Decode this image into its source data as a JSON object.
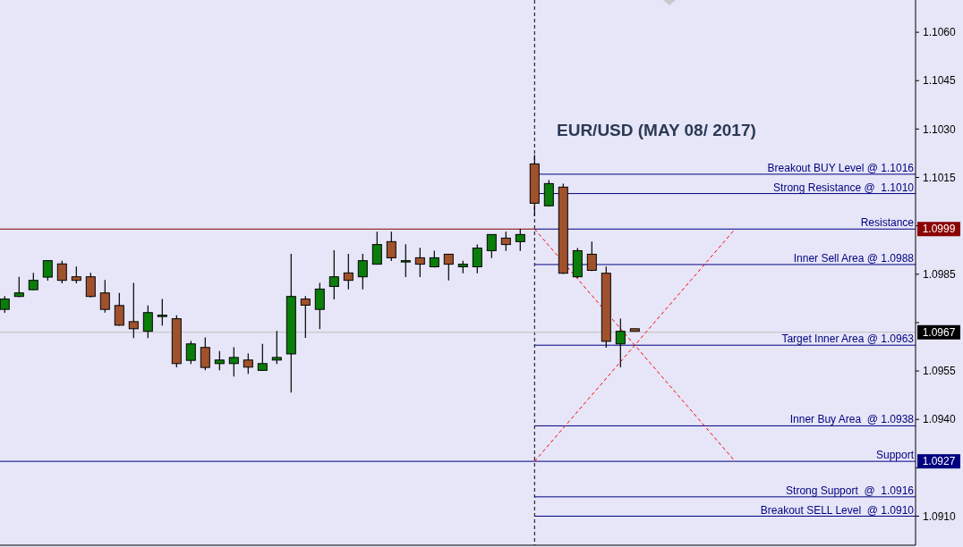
{
  "chart_data": {
    "type": "candlestick",
    "title": "EUR/USD (MAY 08/ 2017)",
    "categories": [
      null,
      null,
      null,
      null,
      null,
      null,
      null,
      null,
      null,
      null,
      null,
      null,
      null,
      null,
      null,
      null,
      null,
      null,
      null,
      null,
      null,
      null,
      null,
      null,
      null,
      null,
      null,
      null,
      null,
      null,
      null,
      null,
      null,
      null,
      null,
      null,
      null,
      null,
      null,
      null,
      null,
      null,
      null,
      null,
      null,
      null,
      null,
      null,
      null,
      null,
      null,
      null,
      null,
      null,
      null,
      null,
      null,
      null,
      null,
      null,
      null,
      null,
      null,
      null
    ],
    "ohlc": [
      [
        1.09741,
        1.09782,
        1.0973,
        1.09773
      ],
      [
        1.09781,
        1.09842,
        1.09779,
        1.09792
      ],
      [
        1.09802,
        1.09854,
        1.098,
        1.09831
      ],
      [
        1.09841,
        1.09893,
        1.0983,
        1.09892
      ],
      [
        1.09882,
        1.09892,
        1.09822,
        1.09831
      ],
      [
        1.09842,
        1.09874,
        1.09822,
        1.09831
      ],
      [
        1.09842,
        1.09854,
        1.09778,
        1.09781
      ],
      [
        1.09792,
        1.09832,
        1.09731,
        1.09741
      ],
      [
        1.09753,
        1.09792,
        1.0969,
        1.09692
      ],
      [
        1.09703,
        1.09823,
        1.09652,
        1.09681
      ],
      [
        1.09673,
        1.09753,
        1.09652,
        1.09731
      ],
      [
        1.09723,
        1.09773,
        1.09691,
        1.09723
      ],
      [
        1.09712,
        1.09723,
        1.09561,
        1.09573
      ],
      [
        1.09583,
        1.09643,
        1.09572,
        1.09634
      ],
      [
        1.09623,
        1.09654,
        1.09552,
        1.09561
      ],
      [
        1.09573,
        1.09612,
        1.09552,
        1.09584
      ],
      [
        1.09573,
        1.09624,
        1.09533,
        1.09592
      ],
      [
        1.09584,
        1.09604,
        1.09541,
        1.09562
      ],
      [
        1.09552,
        1.09634,
        1.0955,
        1.09573
      ],
      [
        1.09584,
        1.09674,
        1.09572,
        1.09592
      ],
      [
        1.09603,
        1.09913,
        1.09483,
        1.09781
      ],
      [
        1.09773,
        1.09782,
        1.09653,
        1.09754
      ],
      [
        1.09741,
        1.09823,
        1.0968,
        1.09804
      ],
      [
        1.09812,
        1.09924,
        1.09772,
        1.09842
      ],
      [
        1.09854,
        1.09913,
        1.09803,
        1.09831
      ],
      [
        1.09842,
        1.09913,
        1.09803,
        1.09892
      ],
      [
        1.09881,
        1.09982,
        1.0988,
        1.09942
      ],
      [
        1.09951,
        1.09982,
        1.09891,
        1.09901
      ],
      [
        1.09892,
        1.09943,
        1.09841,
        1.09892
      ],
      [
        1.09901,
        1.09932,
        1.09841,
        1.09881
      ],
      [
        1.09873,
        1.09923,
        1.09871,
        1.09901
      ],
      [
        1.09912,
        1.09913,
        1.09831,
        1.09881
      ],
      [
        1.09873,
        1.09892,
        1.09853,
        1.09881
      ],
      [
        1.09873,
        1.09942,
        1.09853,
        1.09931
      ],
      [
        1.09923,
        1.09974,
        1.099,
        1.09973
      ],
      [
        1.09962,
        1.09982,
        1.09922,
        1.09942
      ],
      [
        1.09951,
        1.09991,
        1.09922,
        1.09973
      ],
      [
        1.10192,
        1.1022,
        1.1003,
        1.1007
      ],
      [
        1.10062,
        1.10142,
        1.1006,
        1.10131
      ],
      [
        1.1012,
        1.10131,
        1.09851,
        1.09853
      ],
      [
        1.09842,
        1.09931,
        1.09838,
        1.09923
      ],
      [
        1.09912,
        1.09951,
        1.0986,
        1.09862
      ],
      [
        1.09853,
        1.09874,
        1.09622,
        1.09642
      ],
      [
        1.09634,
        1.09712,
        1.09561,
        1.09673
      ],
      [
        1.09681,
        1.09681,
        1.09673,
        1.09673
      ],
      null,
      null,
      null,
      null,
      null,
      null,
      null,
      null,
      null,
      null,
      null,
      null,
      null,
      null,
      null,
      null,
      null,
      null,
      null
    ],
    "colors": [
      "#0a7d0a",
      "#0a7d0a",
      "#0a7d0a",
      "#0a7d0a",
      "#a0522d",
      "#a0522d",
      "#a0522d",
      "#a0522d",
      "#a0522d",
      "#a0522d",
      "#0a7d0a",
      "#0a7d0a",
      "#a0522d",
      "#0a7d0a",
      "#a0522d",
      "#0a7d0a",
      "#0a7d0a",
      "#a0522d",
      "#0a7d0a",
      "#0a7d0a",
      "#0a7d0a",
      "#a0522d",
      "#0a7d0a",
      "#0a7d0a",
      "#a0522d",
      "#0a7d0a",
      "#0a7d0a",
      "#a0522d",
      "#0a7d0a",
      "#a0522d",
      "#0a7d0a",
      "#a0522d",
      "#0a7d0a",
      "#0a7d0a",
      "#0a7d0a",
      "#a0522d",
      "#0a7d0a",
      "#a0522d",
      "#0a7d0a",
      "#a0522d",
      "#0a7d0a",
      "#a0522d",
      "#a0522d",
      "#0a7d0a",
      "#a0522d",
      null,
      null,
      null,
      null,
      null,
      null,
      null,
      null,
      null,
      null,
      null,
      null,
      null,
      null,
      null,
      null,
      null,
      null,
      null
    ],
    "series": [
      {
        "type": "line",
        "color": "#ff0000",
        "line_style": "dashed",
        "values": [
          null,
          null,
          null,
          null,
          null,
          null,
          null,
          null,
          null,
          null,
          null,
          null,
          null,
          null,
          null,
          null,
          null,
          null,
          null,
          null,
          null,
          null,
          null,
          null,
          null,
          null,
          null,
          null,
          null,
          null,
          null,
          null,
          null,
          null,
          null,
          null,
          null,
          1.0999,
          null,
          null,
          null,
          null,
          null,
          null,
          null,
          null,
          null,
          null,
          null,
          null,
          null,
          1.0927,
          null,
          null,
          null,
          null,
          null,
          null,
          null,
          null,
          null,
          null,
          null,
          null
        ]
      },
      {
        "type": "line",
        "color": "#ff0000",
        "line_style": "dashed",
        "values": [
          null,
          null,
          null,
          null,
          null,
          null,
          null,
          null,
          null,
          null,
          null,
          null,
          null,
          null,
          null,
          null,
          null,
          null,
          null,
          null,
          null,
          null,
          null,
          null,
          null,
          null,
          null,
          null,
          null,
          null,
          null,
          null,
          null,
          null,
          null,
          null,
          null,
          1.0927,
          null,
          null,
          null,
          null,
          null,
          null,
          null,
          null,
          null,
          null,
          null,
          null,
          null,
          1.0999,
          null,
          null,
          null,
          null,
          null,
          null,
          null,
          null,
          null,
          null,
          null,
          null
        ]
      }
    ],
    "ylim": [
      1.0901,
      1.107
    ],
    "yticks": [
      {
        "value": 1.091,
        "label": "1.0910"
      },
      {
        "value": 1.0925,
        "label": null
      },
      {
        "value": 1.094,
        "label": "1.0940"
      },
      {
        "value": 1.0955,
        "label": "1.0955"
      },
      {
        "value": 1.097,
        "label": null
      },
      {
        "value": 1.0985,
        "label": "1.0985"
      },
      {
        "value": 1.1,
        "label": null
      },
      {
        "value": 1.1015,
        "label": "1.1015"
      },
      {
        "value": 1.103,
        "label": "1.1030"
      },
      {
        "value": 1.1045,
        "label": "1.1045"
      },
      {
        "value": 1.106,
        "label": "1.1060"
      }
    ],
    "tick_labels": "y",
    "grid": false,
    "ref_lines": [
      {
        "axis": "y",
        "value": 1.0999,
        "label": "Resistance",
        "color": "#8b0000"
      },
      {
        "axis": "y",
        "value": 1.0967,
        "color": "#c0c0c0"
      },
      {
        "axis": "y",
        "value": 1.0927,
        "label": "Support",
        "color": "#000080"
      },
      {
        "axis": "y",
        "value": 1.1016,
        "label": "Breakout BUY Level @ 1.1016",
        "color": "#000080"
      },
      {
        "axis": "y",
        "value": 1.101,
        "label": "Strong Resistance @  1.1010",
        "color": "#000080"
      },
      {
        "axis": "y",
        "value": 1.0988,
        "label": "Inner Sell Area @ 1.0988",
        "color": "#000080"
      },
      {
        "axis": "y",
        "value": 1.0963,
        "label": "Target Inner Area @ 1.0963",
        "color": "#000080"
      },
      {
        "axis": "y",
        "value": 1.0938,
        "label": "Inner Buy Area  @ 1.0938",
        "color": "#000080"
      },
      {
        "axis": "y",
        "value": 1.0916,
        "label": "Strong Support  @  1.0916",
        "color": "#000080"
      },
      {
        "axis": "y",
        "value": 1.091,
        "label": "Breakout SELL Level  @ 1.0910",
        "color": "#000080"
      }
    ],
    "annotations": [
      "1.0999",
      "1.0967",
      "1.0927"
    ]
  }
}
